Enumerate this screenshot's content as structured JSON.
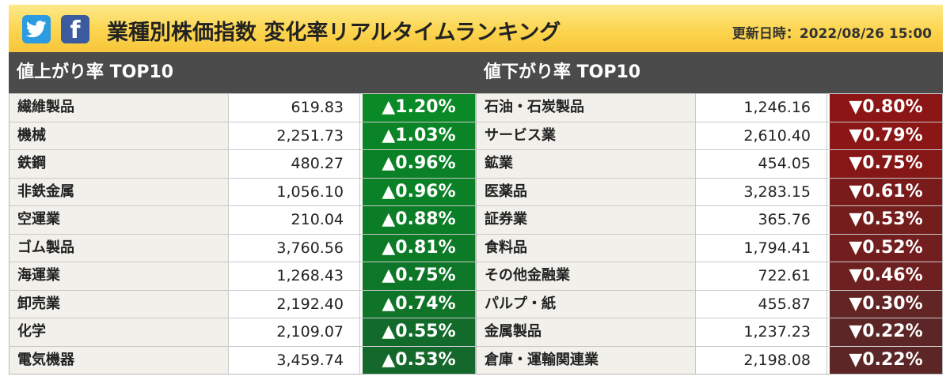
{
  "header": {
    "title": "業種別株価指数 変化率リアルタイムランキング",
    "updated_label": "更新日時：",
    "updated_value": "2022/08/26 15:00"
  },
  "gainers": {
    "heading": "値上がり率 TOP10",
    "rows": [
      {
        "name": "繊維製品",
        "value": "619.83",
        "change": "▲1.20%",
        "color": "#0a8a26"
      },
      {
        "name": "機械",
        "value": "2,251.73",
        "change": "▲1.03%",
        "color": "#0b8427"
      },
      {
        "name": "鉄鋼",
        "value": "480.27",
        "change": "▲0.96%",
        "color": "#0b8127"
      },
      {
        "name": "非鉄金属",
        "value": "1,056.10",
        "change": "▲0.96%",
        "color": "#0b8127"
      },
      {
        "name": "空運業",
        "value": "210.04",
        "change": "▲0.88%",
        "color": "#0c7d27"
      },
      {
        "name": "ゴム製品",
        "value": "3,760.56",
        "change": "▲0.81%",
        "color": "#0d7a27"
      },
      {
        "name": "海運業",
        "value": "1,268.43",
        "change": "▲0.75%",
        "color": "#0e7628"
      },
      {
        "name": "卸売業",
        "value": "2,192.40",
        "change": "▲0.74%",
        "color": "#0f7428"
      },
      {
        "name": "化学",
        "value": "2,109.07",
        "change": "▲0.55%",
        "color": "#136b2b"
      },
      {
        "name": "電気機器",
        "value": "3,459.74",
        "change": "▲0.53%",
        "color": "#15682c"
      }
    ]
  },
  "losers": {
    "heading": "値下がり率 TOP10",
    "rows": [
      {
        "name": "石油・石炭製品",
        "value": "1,246.16",
        "change": "▼0.80%",
        "color": "#8c1515"
      },
      {
        "name": "サービス業",
        "value": "2,610.40",
        "change": "▼0.79%",
        "color": "#8a1616"
      },
      {
        "name": "鉱業",
        "value": "454.05",
        "change": "▼0.75%",
        "color": "#861717"
      },
      {
        "name": "医薬品",
        "value": "3,283.15",
        "change": "▼0.61%",
        "color": "#7a1b1b"
      },
      {
        "name": "証券業",
        "value": "365.76",
        "change": "▼0.53%",
        "color": "#741d1d"
      },
      {
        "name": "食料品",
        "value": "1,794.41",
        "change": "▼0.52%",
        "color": "#731e1e"
      },
      {
        "name": "その他金融業",
        "value": "722.61",
        "change": "▼0.46%",
        "color": "#6e2020"
      },
      {
        "name": "パルプ・紙",
        "value": "455.87",
        "change": "▼0.30%",
        "color": "#632424"
      },
      {
        "name": "金属製品",
        "value": "1,237.23",
        "change": "▼0.22%",
        "color": "#5d2626"
      },
      {
        "name": "倉庫・運輸関連業",
        "value": "2,198.08",
        "change": "▼0.22%",
        "color": "#5d2626"
      }
    ]
  }
}
